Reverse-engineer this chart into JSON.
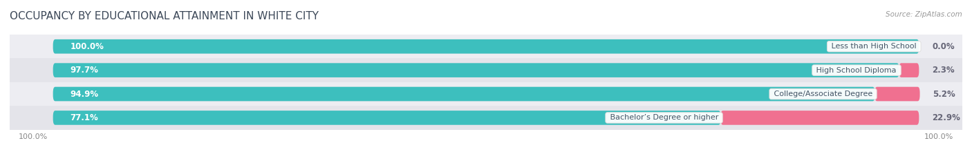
{
  "title": "OCCUPANCY BY EDUCATIONAL ATTAINMENT IN WHITE CITY",
  "source": "Source: ZipAtlas.com",
  "categories": [
    "Less than High School",
    "High School Diploma",
    "College/Associate Degree",
    "Bachelor’s Degree or higher"
  ],
  "owner_pct": [
    100.0,
    97.7,
    94.9,
    77.1
  ],
  "renter_pct": [
    0.0,
    2.3,
    5.2,
    22.9
  ],
  "owner_color": "#3DBFBE",
  "renter_color": "#F07090",
  "bar_bg_color": "#E4E4EA",
  "row_bg_even": "#EDEDF2",
  "row_bg_odd": "#E4E4EA",
  "title_color": "#3C4858",
  "label_color_white": "#FFFFFF",
  "label_color_dark": "#666677",
  "cat_label_color": "#445566",
  "title_fontsize": 11,
  "label_fontsize": 8.5,
  "cat_fontsize": 8.0,
  "source_fontsize": 7.5,
  "axis_label_fontsize": 8,
  "bar_height": 0.6,
  "figsize": [
    14.06,
    2.33
  ],
  "dpi": 100,
  "xlim_left": -5,
  "xlim_right": 105
}
